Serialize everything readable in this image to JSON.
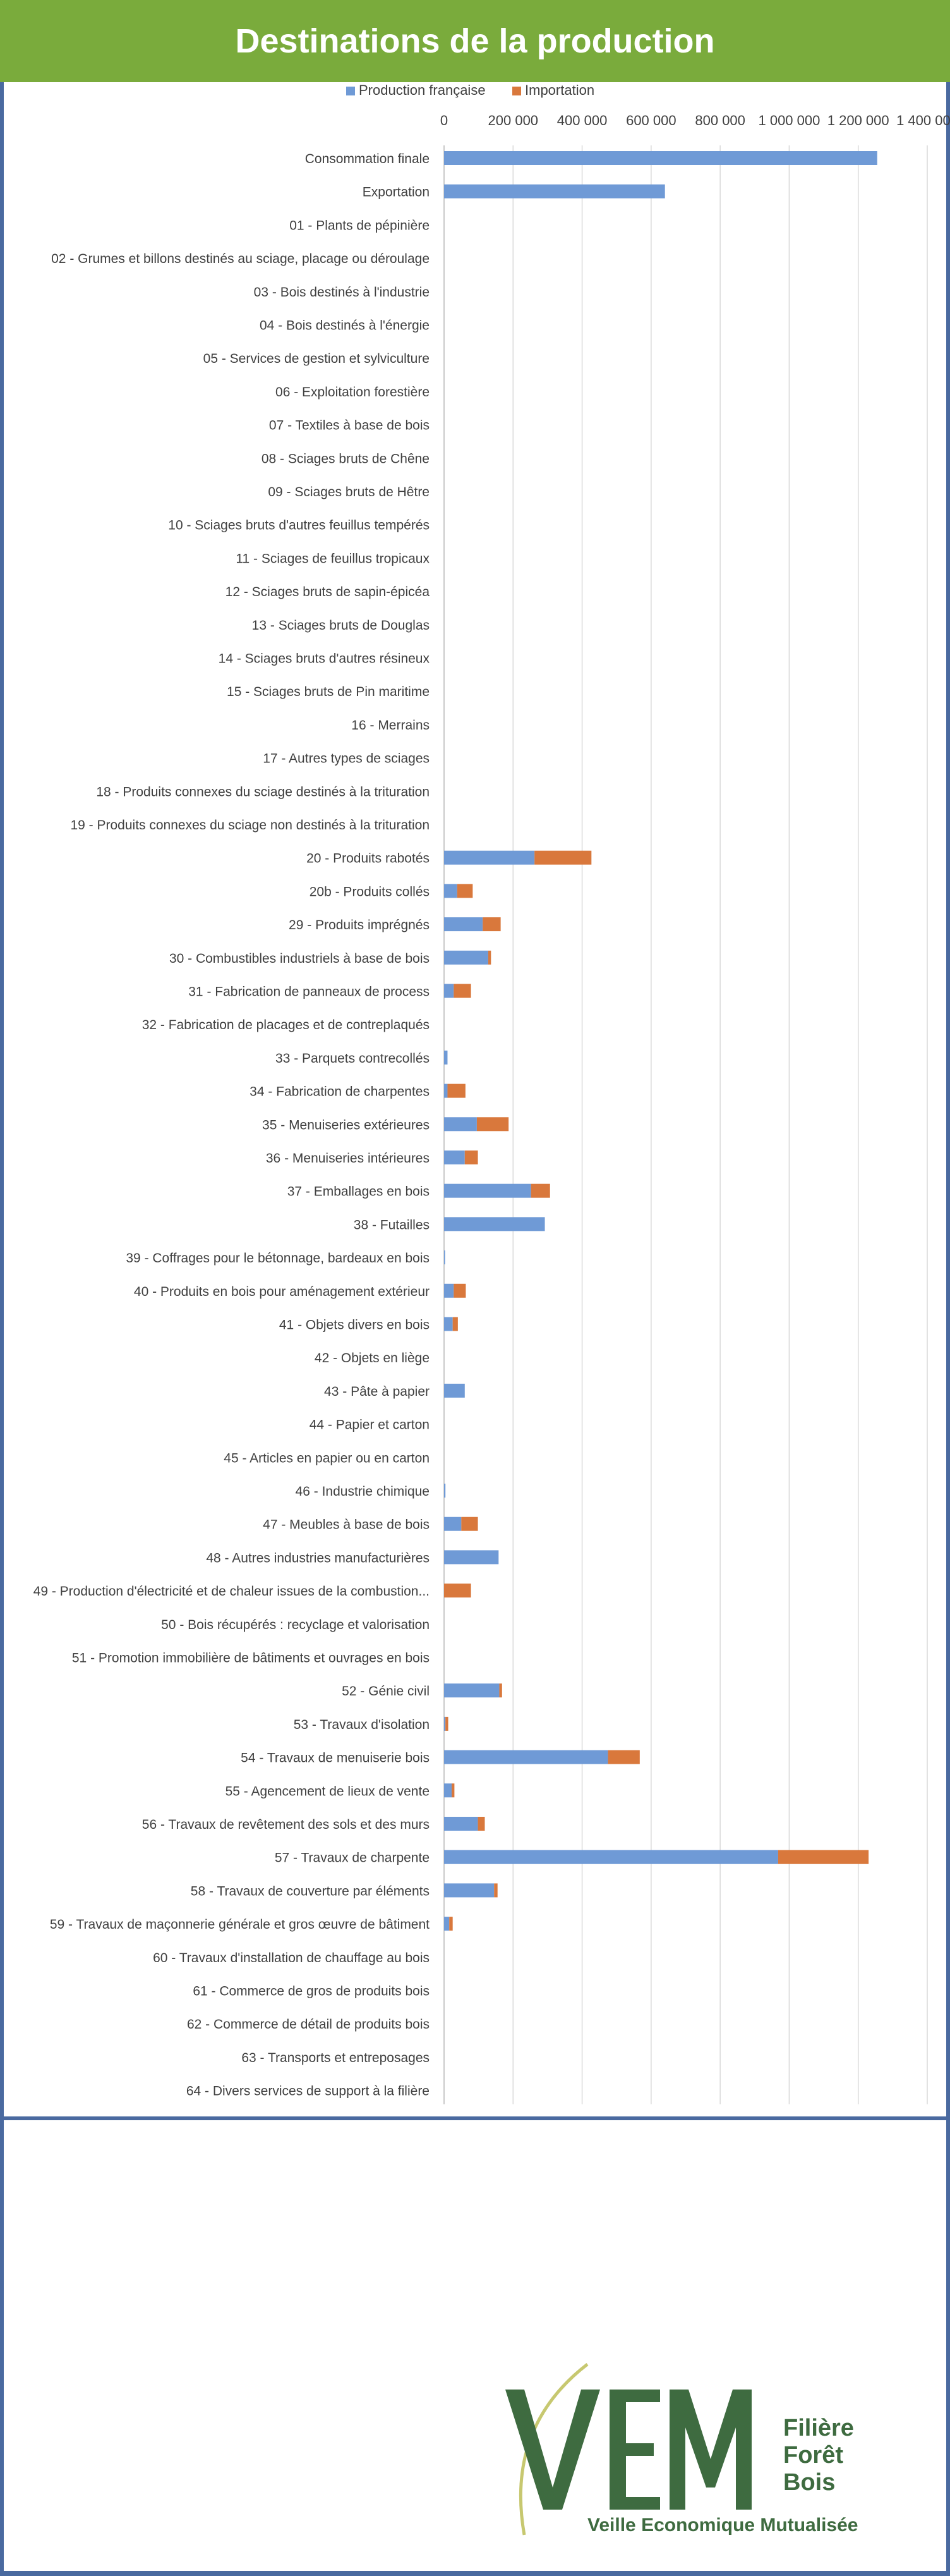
{
  "page": {
    "title": "Destinations de la production"
  },
  "colors": {
    "header_bg": "#7aab3c",
    "frame": "#4a6aa0",
    "series_fr": "#6f9ad6",
    "series_imp": "#d9783c",
    "logo_green": "#3e6b40",
    "logo_arc": "#c7c870"
  },
  "chart_data": {
    "type": "bar",
    "orientation": "horizontal",
    "stacked": true,
    "title": "Destinations de la production",
    "legend_position": "top",
    "grid": true,
    "xlim": [
      0,
      1400000
    ],
    "xticks": [
      0,
      200000,
      400000,
      600000,
      800000,
      1000000,
      1200000,
      1400000
    ],
    "xtick_labels": [
      "0",
      "200 000",
      "400 000",
      "600 000",
      "800 000",
      "1 000 000",
      "1 200 000",
      "1 400 000"
    ],
    "categories": [
      "Consommation finale",
      "Exportation",
      "01 - Plants de pépinière",
      "02 - Grumes et billons destinés au sciage, placage ou déroulage",
      "03 - Bois destinés à l'industrie",
      "04 - Bois destinés à l'énergie",
      "05 - Services de gestion et sylviculture",
      "06 - Exploitation forestière",
      "07 - Textiles à base de bois",
      "08 - Sciages bruts de Chêne",
      "09 - Sciages bruts de Hêtre",
      "10 - Sciages bruts d'autres feuillus tempérés",
      "11 - Sciages de feuillus tropicaux",
      "12 - Sciages bruts de sapin-épicéa",
      "13 - Sciages bruts de Douglas",
      "14 - Sciages bruts d'autres résineux",
      "15 - Sciages bruts de Pin maritime",
      "16 - Merrains",
      "17 - Autres types de sciages",
      "18 - Produits connexes du sciage destinés à la trituration",
      "19 - Produits connexes du sciage non destinés à la trituration",
      "20 - Produits rabotés",
      "20b - Produits collés",
      "29 - Produits imprégnés",
      "30 - Combustibles industriels à base de bois",
      "31 - Fabrication de panneaux de process",
      "32 - Fabrication de placages et de contreplaqués",
      "33 - Parquets contrecollés",
      "34 - Fabrication de charpentes",
      "35 - Menuiseries extérieures",
      "36 - Menuiseries intérieures",
      "37 - Emballages en bois",
      "38 - Futailles",
      "39 - Coffrages pour le bétonnage, bardeaux en bois",
      "40 - Produits en bois pour aménagement extérieur",
      "41 - Objets divers en bois",
      "42 - Objets en liège",
      "43 - Pâte à papier",
      "44 - Papier et carton",
      "45 - Articles en papier ou en carton",
      "46 - Industrie chimique",
      "47 - Meubles à base de bois",
      "48 - Autres industries manufacturières",
      "49 - Production d'électricité et de chaleur issues de la combustion...",
      "50 - Bois récupérés : recyclage et valorisation",
      "51 - Promotion immobilière de bâtiments et ouvrages en bois",
      "52 - Génie civil",
      "53 - Travaux d'isolation",
      "54 - Travaux de menuiserie bois",
      "55 - Agencement de lieux de vente",
      "56 - Travaux de revêtement des sols et des murs",
      "57 - Travaux de charpente",
      "58 - Travaux de couverture par éléments",
      "59 - Travaux de maçonnerie générale et gros œuvre de bâtiment",
      "60 - Travaux d'installation de chauffage au bois",
      "61 - Commerce de gros de produits bois",
      "62 - Commerce de détail de produits bois",
      "63 - Transports et entreposages",
      "64 - Divers services de support à la filière"
    ],
    "series": [
      {
        "name": "Production française",
        "color": "#6f9ad6",
        "values": [
          1255000,
          640000,
          0,
          0,
          0,
          0,
          0,
          0,
          0,
          0,
          0,
          0,
          0,
          0,
          0,
          0,
          0,
          0,
          0,
          0,
          0,
          262000,
          38000,
          112000,
          128000,
          28000,
          0,
          10000,
          10000,
          95000,
          60000,
          252000,
          292000,
          3000,
          28000,
          25000,
          0,
          60000,
          0,
          0,
          4000,
          50000,
          158000,
          0,
          0,
          0,
          160000,
          4000,
          475000,
          22000,
          98000,
          968000,
          145000,
          15000,
          0,
          0,
          0,
          0,
          0
        ]
      },
      {
        "name": "Importation",
        "color": "#d9783c",
        "values": [
          0,
          0,
          0,
          0,
          0,
          0,
          0,
          0,
          0,
          0,
          0,
          0,
          0,
          0,
          0,
          0,
          0,
          0,
          0,
          0,
          0,
          165000,
          45000,
          52000,
          8000,
          50000,
          0,
          0,
          52000,
          92000,
          38000,
          55000,
          0,
          0,
          35000,
          15000,
          0,
          0,
          0,
          0,
          0,
          48000,
          0,
          78000,
          0,
          0,
          8000,
          8000,
          92000,
          8000,
          20000,
          262000,
          10000,
          10000,
          0,
          0,
          0,
          0,
          0
        ]
      }
    ]
  },
  "logo": {
    "letters": "VEM",
    "line1": "Filière",
    "line2": "Forêt",
    "line3": "Bois",
    "tagline": "Veille Economique Mutualisée"
  }
}
